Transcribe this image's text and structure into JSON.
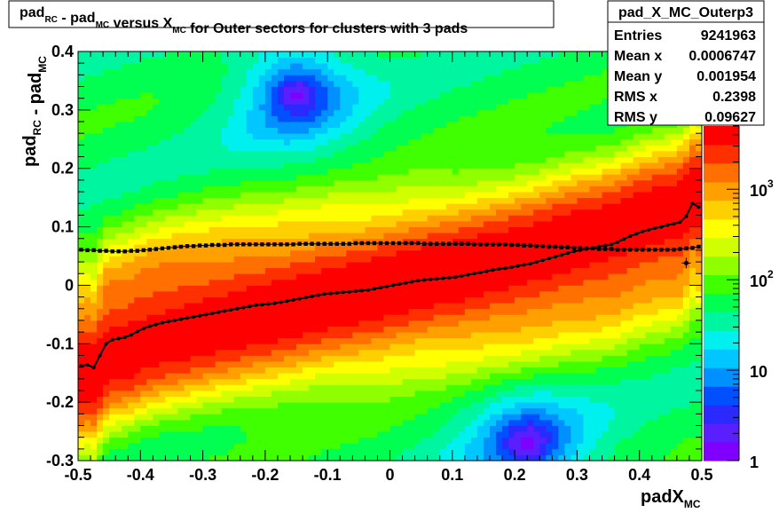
{
  "chart_data": {
    "type": "heatmap",
    "title": {
      "parts": [
        {
          "text": "pad",
          "sub": "RC"
        },
        {
          "text": " - pad",
          "sub": "MC"
        },
        {
          "text": " versus X",
          "sub": "MC"
        },
        {
          "text": " for Outer sectors for clusters with 3 pads",
          "sub": ""
        }
      ]
    },
    "xlabel": {
      "text": "padX",
      "sub": "MC"
    },
    "ylabel": {
      "parts": [
        {
          "text": "pad",
          "sub": "RC"
        },
        {
          "text": " - pad",
          "sub": "MC"
        }
      ]
    },
    "xlim": [
      -0.5,
      0.5
    ],
    "ylim": [
      -0.3,
      0.4
    ],
    "x_ticks": [
      "-0.5",
      "-0.4",
      "-0.3",
      "-0.2",
      "-0.1",
      "0",
      "0.1",
      "0.2",
      "0.3",
      "0.4",
      "0.5"
    ],
    "y_ticks": [
      "-0.3",
      "-0.2",
      "-0.1",
      "0",
      "0.1",
      "0.2",
      "0.3",
      "0.4"
    ],
    "z_scale": "log",
    "z_range": [
      1,
      5000
    ],
    "z_ticks": [
      {
        "value": 1,
        "base": "1",
        "exp": ""
      },
      {
        "value": 10,
        "base": "10",
        "exp": ""
      },
      {
        "value": 100,
        "base": "10",
        "exp": "2"
      },
      {
        "value": 1000,
        "base": "10",
        "exp": "3"
      }
    ],
    "palette": [
      "#7f00ff",
      "#5a1eff",
      "#2a2aff",
      "#0050ff",
      "#0090ff",
      "#00c8ff",
      "#00f0f0",
      "#00f5a0",
      "#00ff50",
      "#40ff00",
      "#90ff00",
      "#d0ff00",
      "#ffff00",
      "#ffd000",
      "#ffa000",
      "#ff7000",
      "#ff3000",
      "#ff0000"
    ],
    "stats": {
      "name": "pad_X_MC_Outerp3",
      "rows": [
        {
          "label": "Entries",
          "value": "9241963"
        },
        {
          "label": "Mean x",
          "value": "0.0006747"
        },
        {
          "label": "Mean y",
          "value": "0.001954"
        },
        {
          "label": "RMS x",
          "value": "0.2398"
        },
        {
          "label": "RMS y",
          "value": "0.09627"
        }
      ]
    },
    "series": [
      {
        "kind": "profile-mean",
        "x": [
          -0.495,
          -0.485,
          -0.475,
          -0.465,
          -0.455,
          -0.445,
          -0.435,
          -0.425,
          -0.415,
          -0.405,
          -0.395,
          -0.385,
          -0.375,
          -0.365,
          -0.355,
          -0.345,
          -0.335,
          -0.325,
          -0.315,
          -0.305,
          -0.295,
          -0.285,
          -0.275,
          -0.265,
          -0.255,
          -0.245,
          -0.235,
          -0.225,
          -0.215,
          -0.205,
          -0.195,
          -0.185,
          -0.175,
          -0.165,
          -0.155,
          -0.145,
          -0.135,
          -0.125,
          -0.115,
          -0.105,
          -0.095,
          -0.085,
          -0.075,
          -0.065,
          -0.055,
          -0.045,
          -0.035,
          -0.025,
          -0.015,
          -0.005,
          0.005,
          0.015,
          0.025,
          0.035,
          0.045,
          0.055,
          0.065,
          0.075,
          0.085,
          0.095,
          0.105,
          0.115,
          0.125,
          0.135,
          0.145,
          0.155,
          0.165,
          0.175,
          0.185,
          0.195,
          0.205,
          0.215,
          0.225,
          0.235,
          0.245,
          0.255,
          0.265,
          0.275,
          0.285,
          0.295,
          0.305,
          0.315,
          0.325,
          0.335,
          0.345,
          0.355,
          0.365,
          0.375,
          0.385,
          0.395,
          0.405,
          0.415,
          0.425,
          0.435,
          0.445,
          0.455,
          0.465,
          0.475,
          0.485,
          0.495
        ],
        "y": [
          -0.138,
          -0.136,
          -0.141,
          -0.12,
          -0.1,
          -0.093,
          -0.091,
          -0.089,
          -0.085,
          -0.079,
          -0.074,
          -0.07,
          -0.067,
          -0.064,
          -0.062,
          -0.06,
          -0.058,
          -0.056,
          -0.054,
          -0.052,
          -0.05,
          -0.048,
          -0.046,
          -0.044,
          -0.042,
          -0.04,
          -0.038,
          -0.036,
          -0.034,
          -0.033,
          -0.032,
          -0.031,
          -0.029,
          -0.027,
          -0.025,
          -0.023,
          -0.021,
          -0.019,
          -0.017,
          -0.015,
          -0.014,
          -0.013,
          -0.012,
          -0.011,
          -0.01,
          -0.009,
          -0.008,
          -0.006,
          -0.004,
          -0.002,
          0.0,
          0.002,
          0.004,
          0.006,
          0.008,
          0.009,
          0.01,
          0.011,
          0.012,
          0.013,
          0.014,
          0.016,
          0.018,
          0.02,
          0.022,
          0.024,
          0.026,
          0.028,
          0.029,
          0.031,
          0.033,
          0.035,
          0.037,
          0.04,
          0.043,
          0.046,
          0.049,
          0.052,
          0.055,
          0.058,
          0.06,
          0.062,
          0.064,
          0.066,
          0.068,
          0.07,
          0.074,
          0.079,
          0.084,
          0.088,
          0.092,
          0.095,
          0.098,
          0.1,
          0.103,
          0.105,
          0.108,
          0.118,
          0.14,
          0.134
        ]
      },
      {
        "kind": "profile-rms",
        "x": [
          -0.495,
          -0.485,
          -0.475,
          -0.465,
          -0.455,
          -0.445,
          -0.435,
          -0.425,
          -0.415,
          -0.405,
          -0.395,
          -0.385,
          -0.375,
          -0.365,
          -0.355,
          -0.345,
          -0.335,
          -0.325,
          -0.315,
          -0.305,
          -0.295,
          -0.285,
          -0.275,
          -0.265,
          -0.255,
          -0.245,
          -0.235,
          -0.225,
          -0.215,
          -0.205,
          -0.195,
          -0.185,
          -0.175,
          -0.165,
          -0.155,
          -0.145,
          -0.135,
          -0.125,
          -0.115,
          -0.105,
          -0.095,
          -0.085,
          -0.075,
          -0.065,
          -0.055,
          -0.045,
          -0.035,
          -0.025,
          -0.015,
          -0.005,
          0.005,
          0.015,
          0.025,
          0.035,
          0.045,
          0.055,
          0.065,
          0.075,
          0.085,
          0.095,
          0.105,
          0.115,
          0.125,
          0.135,
          0.145,
          0.155,
          0.165,
          0.175,
          0.185,
          0.195,
          0.205,
          0.215,
          0.225,
          0.235,
          0.245,
          0.255,
          0.265,
          0.275,
          0.285,
          0.295,
          0.305,
          0.315,
          0.325,
          0.335,
          0.345,
          0.355,
          0.365,
          0.375,
          0.385,
          0.395,
          0.405,
          0.415,
          0.425,
          0.435,
          0.445,
          0.455,
          0.465,
          0.475,
          0.485,
          0.495
        ],
        "y": [
          0.061,
          0.06,
          0.06,
          0.059,
          0.059,
          0.058,
          0.058,
          0.058,
          0.059,
          0.059,
          0.06,
          0.061,
          0.062,
          0.063,
          0.064,
          0.065,
          0.066,
          0.067,
          0.067,
          0.068,
          0.068,
          0.069,
          0.069,
          0.069,
          0.07,
          0.07,
          0.07,
          0.07,
          0.07,
          0.07,
          0.07,
          0.07,
          0.07,
          0.07,
          0.07,
          0.071,
          0.071,
          0.071,
          0.071,
          0.071,
          0.071,
          0.071,
          0.071,
          0.071,
          0.072,
          0.072,
          0.072,
          0.072,
          0.072,
          0.072,
          0.072,
          0.072,
          0.072,
          0.072,
          0.072,
          0.071,
          0.071,
          0.071,
          0.071,
          0.071,
          0.071,
          0.071,
          0.071,
          0.07,
          0.07,
          0.07,
          0.07,
          0.07,
          0.07,
          0.069,
          0.069,
          0.068,
          0.068,
          0.067,
          0.067,
          0.066,
          0.066,
          0.065,
          0.065,
          0.064,
          0.064,
          0.063,
          0.063,
          0.062,
          0.062,
          0.062,
          0.061,
          0.061,
          0.061,
          0.061,
          0.061,
          0.061,
          0.061,
          0.061,
          0.061,
          0.061,
          0.062,
          0.063,
          0.064,
          0.066
        ]
      },
      {
        "kind": "outlier",
        "x": [
          0.475
        ],
        "y": [
          0.038
        ]
      }
    ]
  }
}
